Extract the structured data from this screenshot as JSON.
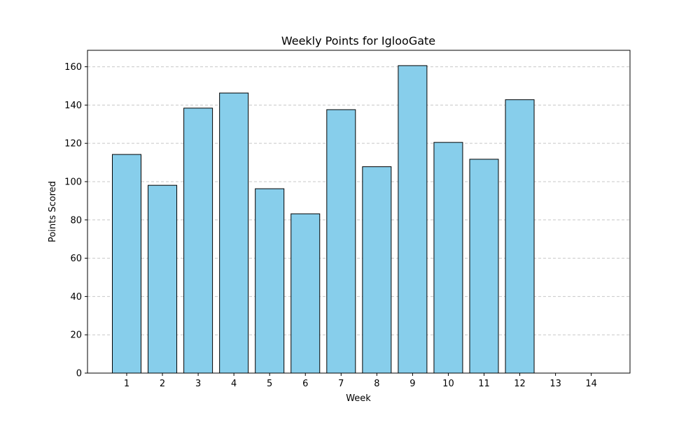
{
  "chart_data": {
    "type": "bar",
    "title": "Weekly Points for IglooGate",
    "xlabel": "Week",
    "ylabel": "Points Scored",
    "categories": [
      "1",
      "2",
      "3",
      "4",
      "5",
      "6",
      "7",
      "8",
      "9",
      "10",
      "11",
      "12",
      "13",
      "14"
    ],
    "values": [
      114.2,
      98.1,
      138.4,
      146.3,
      96.3,
      83.2,
      137.6,
      107.8,
      160.6,
      120.5,
      111.7,
      142.8,
      0,
      0
    ],
    "ylim": [
      0,
      168.6
    ],
    "yticks": [
      0,
      20,
      40,
      60,
      80,
      100,
      120,
      140,
      160
    ],
    "grid": "y-dashed",
    "colors": {
      "bar_fill": "#87ceeb",
      "bar_edge": "#000000",
      "grid": "#c8c8c8"
    }
  }
}
